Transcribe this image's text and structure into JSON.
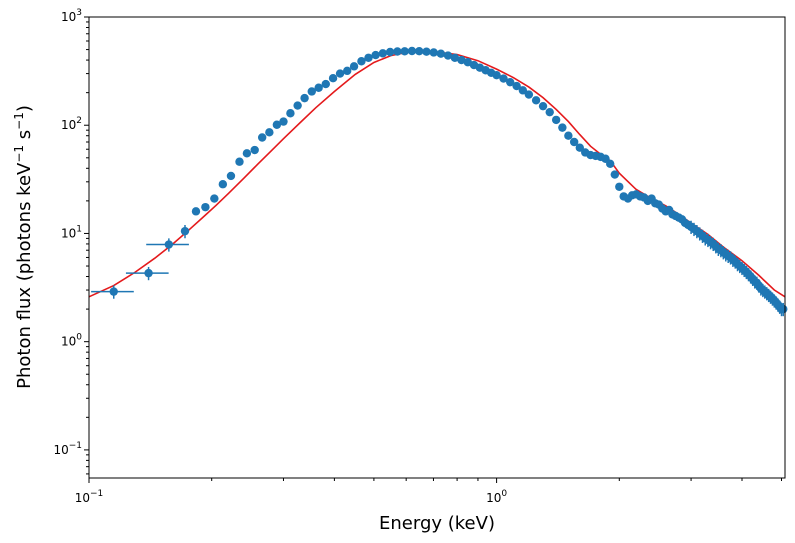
{
  "chart_data": {
    "type": "scatter",
    "xlabel": "Energy (keV)",
    "ylabel_parts": {
      "base": "Photon flux (photons keV",
      "exp1": "−1",
      "mid": " s",
      "exp2": "−1",
      "tail": ")"
    },
    "xscale": "log",
    "yscale": "log",
    "xlim": [
      0.1,
      5.1
    ],
    "ylim": [
      0.055,
      1000
    ],
    "x_ticks": [
      {
        "value": 0.1,
        "base": "10",
        "exp": "−1"
      },
      {
        "value": 1,
        "base": "10",
        "exp": "0"
      }
    ],
    "y_ticks": [
      {
        "value": 0.1,
        "base": "10",
        "exp": "−1"
      },
      {
        "value": 1,
        "base": "10",
        "exp": "0"
      },
      {
        "value": 10,
        "base": "10",
        "exp": "1"
      },
      {
        "value": 100,
        "base": "10",
        "exp": "2"
      },
      {
        "value": 1000,
        "base": "10",
        "exp": "3"
      }
    ],
    "grid": false,
    "colors": {
      "data": "#1f77b4",
      "model": "#e41a1c",
      "axes": "#000000"
    },
    "series": [
      {
        "kind": "points-with-errorbars",
        "x": [
          0.115,
          0.14,
          0.157,
          0.172,
          0.183,
          0.193,
          0.203,
          0.213,
          0.223,
          0.234,
          0.244,
          0.255,
          0.266,
          0.277,
          0.289,
          0.3,
          0.312,
          0.325,
          0.338,
          0.352,
          0.366,
          0.381,
          0.397,
          0.413,
          0.43,
          0.447,
          0.466,
          0.485,
          0.505,
          0.526,
          0.548,
          0.571,
          0.595,
          0.62,
          0.646,
          0.673,
          0.701,
          0.73,
          0.76,
          0.79,
          0.82,
          0.85,
          0.88,
          0.91,
          0.94,
          0.97,
          1.0,
          1.04,
          1.08,
          1.12,
          1.16,
          1.2,
          1.25,
          1.3,
          1.35,
          1.4,
          1.45,
          1.5,
          1.55,
          1.6,
          1.65,
          1.7,
          1.75,
          1.8,
          1.85,
          1.9,
          1.95,
          2.0,
          2.05,
          2.1,
          2.15,
          2.2,
          2.25,
          2.3,
          2.35,
          2.4,
          2.45,
          2.5,
          2.55,
          2.6,
          2.65,
          2.7,
          2.75,
          2.8,
          2.85,
          2.9,
          2.95,
          3.0,
          3.05,
          3.1,
          3.15,
          3.2,
          3.25,
          3.3,
          3.35,
          3.4,
          3.45,
          3.5,
          3.55,
          3.6,
          3.65,
          3.7,
          3.75,
          3.8,
          3.85,
          3.9,
          3.95,
          4.0,
          4.05,
          4.1,
          4.15,
          4.2,
          4.25,
          4.3,
          4.35,
          4.4,
          4.45,
          4.5,
          4.55,
          4.6,
          4.65,
          4.7,
          4.75,
          4.8,
          4.85,
          4.9,
          4.95,
          5.0,
          5.05
        ],
        "y": [
          2.9,
          4.3,
          7.9,
          10.5,
          16.0,
          17.5,
          21.0,
          28.5,
          34.0,
          46.0,
          55.0,
          59.0,
          77.0,
          86.0,
          101.0,
          108.0,
          129.0,
          152.0,
          178.0,
          205.0,
          222.0,
          240.0,
          272.0,
          300.0,
          318.0,
          350.0,
          390.0,
          420.0,
          445.0,
          462.0,
          475.0,
          480.0,
          482.0,
          485.0,
          483.0,
          478.0,
          470.0,
          458.0,
          440.0,
          420.0,
          400.0,
          382.0,
          360.0,
          340.0,
          322.0,
          305.0,
          290.0,
          270.0,
          250.0,
          230.0,
          210.0,
          192.0,
          170.0,
          150.0,
          132.0,
          112.0,
          95.0,
          80.0,
          70.0,
          62.0,
          56.0,
          53.0,
          52.0,
          51.0,
          49.0,
          44.0,
          35.0,
          27.0,
          22.0,
          21.0,
          22.5,
          23.0,
          22.0,
          21.5,
          20.0,
          21.0,
          19.0,
          18.5,
          17.0,
          16.0,
          16.5,
          15.0,
          14.5,
          14.0,
          13.5,
          12.5,
          12.0,
          11.5,
          11.0,
          10.5,
          10.0,
          9.5,
          9.0,
          8.7,
          8.3,
          8.0,
          7.6,
          7.2,
          7.0,
          6.7,
          6.4,
          6.2,
          6.0,
          5.7,
          5.5,
          5.2,
          5.0,
          4.8,
          4.6,
          4.4,
          4.2,
          4.0,
          3.8,
          3.6,
          3.5,
          3.3,
          3.1,
          3.0,
          2.9,
          2.8,
          2.7,
          2.6,
          2.5,
          2.4,
          2.3,
          2.2,
          2.1,
          2.0,
          2.0
        ]
      },
      {
        "kind": "model-line",
        "x": [
          0.1,
          0.115,
          0.13,
          0.145,
          0.16,
          0.175,
          0.19,
          0.205,
          0.22,
          0.24,
          0.26,
          0.28,
          0.3,
          0.33,
          0.36,
          0.4,
          0.45,
          0.5,
          0.55,
          0.6,
          0.65,
          0.7,
          0.8,
          0.9,
          1.0,
          1.1,
          1.2,
          1.3,
          1.4,
          1.5,
          1.6,
          1.7,
          1.8,
          1.9,
          2.0,
          2.2,
          2.4,
          2.6,
          2.8,
          3.0,
          3.3,
          3.6,
          4.0,
          4.4,
          4.8,
          5.1
        ],
        "y": [
          2.6,
          3.3,
          4.4,
          5.9,
          7.9,
          10.6,
          14.0,
          18.2,
          23.5,
          32.5,
          44.0,
          58.0,
          75.0,
          106.0,
          145.0,
          205.0,
          295.0,
          380.0,
          440.0,
          470.0,
          480.0,
          478.0,
          450.0,
          395.0,
          330.0,
          275.0,
          225.0,
          180.0,
          140.0,
          108.0,
          82.0,
          64.0,
          54.0,
          47.0,
          36.0,
          25.5,
          21.0,
          18.0,
          15.0,
          12.5,
          9.8,
          7.5,
          5.6,
          4.1,
          3.0,
          2.6
        ]
      }
    ]
  }
}
